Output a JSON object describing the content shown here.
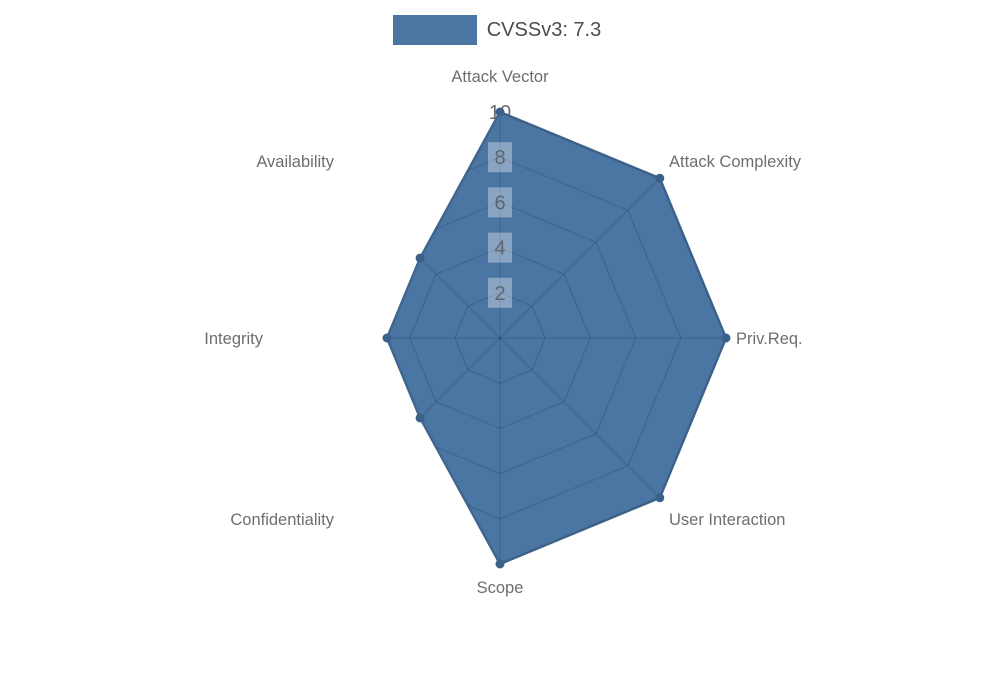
{
  "legend": {
    "label": "CVSSv3: 7.3"
  },
  "chart_data": {
    "type": "radar",
    "title": "",
    "legend_entries": [
      "CVSSv3: 7.3"
    ],
    "legend_position": "top",
    "categories": [
      "Attack Vector",
      "Attack Complexity",
      "Priv.Req.",
      "User Interaction",
      "Scope",
      "Confidentiality",
      "Integrity",
      "Availability"
    ],
    "series": [
      {
        "name": "CVSSv3: 7.3",
        "values": [
          10,
          10,
          10,
          10,
          10,
          5,
          5,
          5
        ]
      }
    ],
    "radial_ticks": [
      2,
      4,
      6,
      8,
      10
    ],
    "r_range": [
      0,
      10
    ],
    "grid_shape": "polygon",
    "grid": "on",
    "start_axis": "top",
    "direction": "clockwise",
    "colors": {
      "fill": "#4b76a4",
      "border": "#40668e",
      "marker": "#3a618a",
      "grid_line": "rgba(0,0,0,0.14)",
      "tick_backdrop": "rgba(255,255,255,0.35)",
      "tick_backdrop_outer": "#ffffff",
      "tick_text": "#5d6570",
      "tick_text_outer": "#6b6b6b",
      "axis_label": "#6e6e6e",
      "legend_text": "#4a4d50"
    }
  }
}
